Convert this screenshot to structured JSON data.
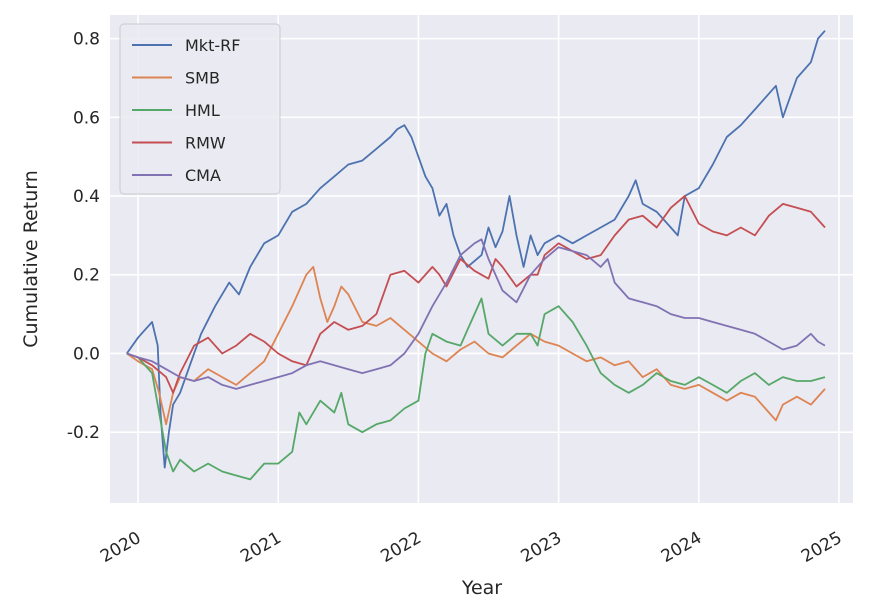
{
  "chart_data": {
    "type": "line",
    "title": "",
    "xlabel": "Year",
    "ylabel": "Cumulative Return",
    "x_ticks": [
      "2020",
      "2021",
      "2022",
      "2023",
      "2024",
      "2025"
    ],
    "y_ticks": [
      "-0.2",
      "0.0",
      "0.2",
      "0.4",
      "0.6",
      "0.8"
    ],
    "xlim": [
      2019.8,
      2025.1
    ],
    "ylim": [
      -0.38,
      0.86
    ],
    "grid": true,
    "legend_position": "top-left",
    "series": [
      {
        "name": "Mkt-RF",
        "color": "#4c72b0",
        "x": [
          2019.92,
          2020.0,
          2020.05,
          2020.1,
          2020.14,
          2020.16,
          2020.19,
          2020.22,
          2020.25,
          2020.3,
          2020.35,
          2020.45,
          2020.55,
          2020.65,
          2020.72,
          2020.8,
          2020.9,
          2021.0,
          2021.1,
          2021.2,
          2021.3,
          2021.4,
          2021.5,
          2021.6,
          2021.7,
          2021.8,
          2021.85,
          2021.9,
          2021.95,
          2022.0,
          2022.05,
          2022.1,
          2022.15,
          2022.2,
          2022.25,
          2022.3,
          2022.35,
          2022.45,
          2022.5,
          2022.55,
          2022.6,
          2022.65,
          2022.7,
          2022.75,
          2022.8,
          2022.85,
          2022.9,
          2023.0,
          2023.1,
          2023.2,
          2023.3,
          2023.4,
          2023.5,
          2023.55,
          2023.6,
          2023.7,
          2023.8,
          2023.85,
          2023.9,
          2024.0,
          2024.1,
          2024.2,
          2024.3,
          2024.4,
          2024.5,
          2024.55,
          2024.6,
          2024.7,
          2024.8,
          2024.85,
          2024.9
        ],
        "y": [
          0.0,
          0.04,
          0.06,
          0.08,
          0.02,
          -0.15,
          -0.29,
          -0.2,
          -0.13,
          -0.1,
          -0.05,
          0.05,
          0.12,
          0.18,
          0.15,
          0.22,
          0.28,
          0.3,
          0.36,
          0.38,
          0.42,
          0.45,
          0.48,
          0.49,
          0.52,
          0.55,
          0.57,
          0.58,
          0.55,
          0.5,
          0.45,
          0.42,
          0.35,
          0.38,
          0.3,
          0.25,
          0.22,
          0.25,
          0.32,
          0.27,
          0.31,
          0.4,
          0.3,
          0.22,
          0.3,
          0.25,
          0.28,
          0.3,
          0.28,
          0.3,
          0.32,
          0.34,
          0.4,
          0.44,
          0.38,
          0.36,
          0.32,
          0.3,
          0.4,
          0.42,
          0.48,
          0.55,
          0.58,
          0.62,
          0.66,
          0.68,
          0.6,
          0.7,
          0.74,
          0.8,
          0.82
        ]
      },
      {
        "name": "SMB",
        "color": "#dd8452",
        "x": [
          2019.92,
          2020.0,
          2020.1,
          2020.15,
          2020.2,
          2020.25,
          2020.3,
          2020.4,
          2020.5,
          2020.6,
          2020.7,
          2020.8,
          2020.9,
          2021.0,
          2021.1,
          2021.2,
          2021.25,
          2021.3,
          2021.35,
          2021.4,
          2021.45,
          2021.5,
          2021.6,
          2021.7,
          2021.8,
          2021.9,
          2022.0,
          2022.1,
          2022.2,
          2022.3,
          2022.4,
          2022.5,
          2022.6,
          2022.7,
          2022.8,
          2022.9,
          2023.0,
          2023.1,
          2023.2,
          2023.3,
          2023.4,
          2023.5,
          2023.6,
          2023.7,
          2023.8,
          2023.9,
          2024.0,
          2024.1,
          2024.2,
          2024.3,
          2024.4,
          2024.5,
          2024.55,
          2024.6,
          2024.7,
          2024.8,
          2024.9
        ],
        "y": [
          0.0,
          -0.02,
          -0.04,
          -0.1,
          -0.18,
          -0.1,
          -0.06,
          -0.07,
          -0.04,
          -0.06,
          -0.08,
          -0.05,
          -0.02,
          0.05,
          0.12,
          0.2,
          0.22,
          0.14,
          0.08,
          0.12,
          0.17,
          0.15,
          0.08,
          0.07,
          0.09,
          0.06,
          0.03,
          0.0,
          -0.02,
          0.01,
          0.03,
          0.0,
          -0.01,
          0.02,
          0.05,
          0.03,
          0.02,
          0.0,
          -0.02,
          -0.01,
          -0.03,
          -0.02,
          -0.06,
          -0.04,
          -0.08,
          -0.09,
          -0.08,
          -0.1,
          -0.12,
          -0.1,
          -0.11,
          -0.15,
          -0.17,
          -0.13,
          -0.11,
          -0.13,
          -0.09
        ]
      },
      {
        "name": "HML",
        "color": "#55a868",
        "x": [
          2019.92,
          2020.0,
          2020.05,
          2020.1,
          2020.15,
          2020.2,
          2020.25,
          2020.3,
          2020.4,
          2020.5,
          2020.6,
          2020.7,
          2020.8,
          2020.9,
          2021.0,
          2021.1,
          2021.15,
          2021.2,
          2021.3,
          2021.4,
          2021.45,
          2021.5,
          2021.6,
          2021.7,
          2021.8,
          2021.9,
          2022.0,
          2022.05,
          2022.1,
          2022.2,
          2022.3,
          2022.35,
          2022.4,
          2022.45,
          2022.5,
          2022.6,
          2022.7,
          2022.8,
          2022.85,
          2022.9,
          2023.0,
          2023.1,
          2023.2,
          2023.3,
          2023.4,
          2023.5,
          2023.6,
          2023.7,
          2023.8,
          2023.9,
          2024.0,
          2024.1,
          2024.2,
          2024.3,
          2024.4,
          2024.5,
          2024.6,
          2024.7,
          2024.8,
          2024.9
        ],
        "y": [
          0.0,
          -0.01,
          -0.03,
          -0.05,
          -0.15,
          -0.25,
          -0.3,
          -0.27,
          -0.3,
          -0.28,
          -0.3,
          -0.31,
          -0.32,
          -0.28,
          -0.28,
          -0.25,
          -0.15,
          -0.18,
          -0.12,
          -0.15,
          -0.1,
          -0.18,
          -0.2,
          -0.18,
          -0.17,
          -0.14,
          -0.12,
          0.0,
          0.05,
          0.03,
          0.02,
          0.06,
          0.1,
          0.14,
          0.05,
          0.02,
          0.05,
          0.05,
          0.02,
          0.1,
          0.12,
          0.08,
          0.02,
          -0.05,
          -0.08,
          -0.1,
          -0.08,
          -0.05,
          -0.07,
          -0.08,
          -0.06,
          -0.08,
          -0.1,
          -0.07,
          -0.05,
          -0.08,
          -0.06,
          -0.07,
          -0.07,
          -0.06
        ]
      },
      {
        "name": "RMW",
        "color": "#c44e52",
        "x": [
          2019.92,
          2020.0,
          2020.1,
          2020.2,
          2020.25,
          2020.3,
          2020.4,
          2020.5,
          2020.6,
          2020.7,
          2020.8,
          2020.9,
          2021.0,
          2021.1,
          2021.2,
          2021.3,
          2021.4,
          2021.5,
          2021.6,
          2021.7,
          2021.75,
          2021.8,
          2021.9,
          2022.0,
          2022.1,
          2022.15,
          2022.2,
          2022.3,
          2022.4,
          2022.5,
          2022.55,
          2022.6,
          2022.7,
          2022.8,
          2022.85,
          2022.9,
          2023.0,
          2023.1,
          2023.2,
          2023.3,
          2023.4,
          2023.5,
          2023.6,
          2023.7,
          2023.8,
          2023.9,
          2024.0,
          2024.1,
          2024.2,
          2024.3,
          2024.4,
          2024.5,
          2024.6,
          2024.7,
          2024.8,
          2024.9
        ],
        "y": [
          0.0,
          -0.01,
          -0.03,
          -0.06,
          -0.1,
          -0.05,
          0.02,
          0.04,
          0.0,
          0.02,
          0.05,
          0.03,
          0.0,
          -0.02,
          -0.03,
          0.05,
          0.08,
          0.06,
          0.07,
          0.1,
          0.15,
          0.2,
          0.21,
          0.18,
          0.22,
          0.2,
          0.17,
          0.24,
          0.21,
          0.19,
          0.24,
          0.22,
          0.17,
          0.2,
          0.2,
          0.25,
          0.28,
          0.26,
          0.24,
          0.25,
          0.3,
          0.34,
          0.35,
          0.32,
          0.37,
          0.4,
          0.33,
          0.31,
          0.3,
          0.32,
          0.3,
          0.35,
          0.38,
          0.37,
          0.36,
          0.32
        ]
      },
      {
        "name": "CMA",
        "color": "#8172b3",
        "x": [
          2019.92,
          2020.0,
          2020.1,
          2020.2,
          2020.3,
          2020.4,
          2020.5,
          2020.6,
          2020.7,
          2020.8,
          2020.9,
          2021.0,
          2021.1,
          2021.2,
          2021.3,
          2021.4,
          2021.5,
          2021.6,
          2021.7,
          2021.8,
          2021.9,
          2022.0,
          2022.1,
          2022.2,
          2022.3,
          2022.4,
          2022.45,
          2022.5,
          2022.6,
          2022.7,
          2022.8,
          2022.9,
          2023.0,
          2023.1,
          2023.2,
          2023.3,
          2023.35,
          2023.4,
          2023.5,
          2023.6,
          2023.7,
          2023.8,
          2023.9,
          2024.0,
          2024.1,
          2024.2,
          2024.3,
          2024.4,
          2024.5,
          2024.6,
          2024.7,
          2024.8,
          2024.85,
          2024.9
        ],
        "y": [
          0.0,
          -0.01,
          -0.02,
          -0.04,
          -0.06,
          -0.07,
          -0.06,
          -0.08,
          -0.09,
          -0.08,
          -0.07,
          -0.06,
          -0.05,
          -0.03,
          -0.02,
          -0.03,
          -0.04,
          -0.05,
          -0.04,
          -0.03,
          0.0,
          0.05,
          0.12,
          0.18,
          0.25,
          0.28,
          0.29,
          0.24,
          0.16,
          0.13,
          0.2,
          0.24,
          0.27,
          0.26,
          0.25,
          0.22,
          0.24,
          0.18,
          0.14,
          0.13,
          0.12,
          0.1,
          0.09,
          0.09,
          0.08,
          0.07,
          0.06,
          0.05,
          0.03,
          0.01,
          0.02,
          0.05,
          0.03,
          0.02
        ]
      }
    ]
  }
}
